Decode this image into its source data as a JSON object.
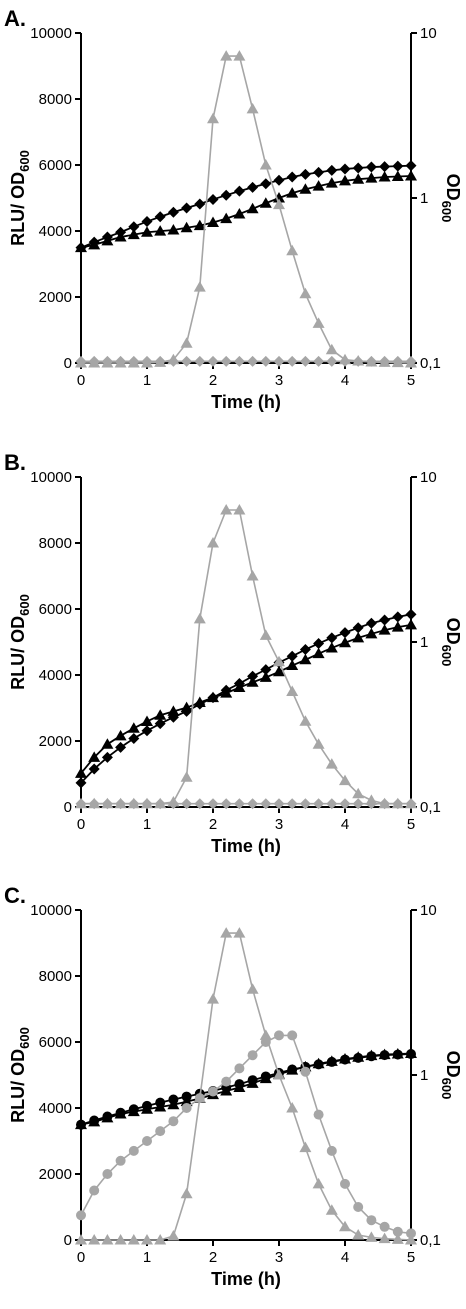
{
  "colors": {
    "black": "#000000",
    "gray": "#a6a6a6"
  },
  "axes": {
    "x_label": "Time (h)",
    "y_left_label": "RLU/ OD",
    "y_left_sub": "600",
    "y_right_label": "OD",
    "y_right_sub": "600",
    "x_ticks": [
      "0",
      "1",
      "2",
      "3",
      "4",
      "5"
    ],
    "y_left_ticks": [
      "0",
      "2000",
      "4000",
      "6000",
      "8000",
      "10000"
    ],
    "y_right_ticks": [
      "0,1",
      "1",
      "10"
    ]
  },
  "chart_data": [
    {
      "panel": "A.",
      "type": "line",
      "xlim": [
        0,
        5
      ],
      "ylim_left": [
        0,
        10000
      ],
      "ylim_right": [
        0.1,
        10
      ],
      "right_scale": "log",
      "series": [
        {
          "axis": "right",
          "marker": "diamond",
          "color": "black",
          "x": [
            0,
            0.2,
            0.4,
            0.6,
            0.8,
            1,
            1.2,
            1.4,
            1.6,
            1.8,
            2,
            2.2,
            2.4,
            2.6,
            2.8,
            3,
            3.2,
            3.4,
            3.6,
            3.8,
            4,
            4.2,
            4.4,
            4.6,
            4.8,
            5
          ],
          "y": [
            0.5,
            0.54,
            0.58,
            0.62,
            0.67,
            0.72,
            0.77,
            0.82,
            0.87,
            0.92,
            0.98,
            1.04,
            1.1,
            1.16,
            1.22,
            1.28,
            1.34,
            1.39,
            1.43,
            1.47,
            1.5,
            1.52,
            1.54,
            1.55,
            1.56,
            1.57
          ]
        },
        {
          "axis": "right",
          "marker": "triangle",
          "color": "black",
          "x": [
            0,
            0.2,
            0.4,
            0.6,
            0.8,
            1,
            1.2,
            1.4,
            1.6,
            1.8,
            2,
            2.2,
            2.4,
            2.6,
            2.8,
            3,
            3.2,
            3.4,
            3.6,
            3.8,
            4,
            4.2,
            4.4,
            4.6,
            4.8,
            5
          ],
          "y": [
            0.5,
            0.52,
            0.55,
            0.58,
            0.6,
            0.62,
            0.63,
            0.64,
            0.66,
            0.68,
            0.71,
            0.75,
            0.8,
            0.86,
            0.93,
            1,
            1.07,
            1.13,
            1.18,
            1.23,
            1.27,
            1.3,
            1.32,
            1.34,
            1.35,
            1.36
          ]
        },
        {
          "axis": "left",
          "marker": "triangle",
          "color": "gray",
          "x": [
            0,
            0.2,
            0.4,
            0.6,
            0.8,
            1,
            1.2,
            1.4,
            1.6,
            1.8,
            2,
            2.2,
            2.4,
            2.6,
            2.8,
            3,
            3.2,
            3.4,
            3.6,
            3.8,
            4,
            4.2,
            4.4,
            4.6,
            4.8,
            5
          ],
          "y": [
            0,
            0,
            0,
            0,
            0,
            0,
            20,
            100,
            600,
            2300,
            7400,
            9300,
            9300,
            7700,
            6000,
            4800,
            3400,
            2100,
            1200,
            400,
            100,
            60,
            30,
            20,
            10,
            0
          ]
        },
        {
          "axis": "left",
          "marker": "diamond",
          "color": "gray",
          "x": [
            0,
            0.2,
            0.4,
            0.6,
            0.8,
            1,
            1.2,
            1.4,
            1.6,
            1.8,
            2,
            2.2,
            2.4,
            2.6,
            2.8,
            3,
            3.2,
            3.4,
            3.6,
            3.8,
            4,
            4.2,
            4.4,
            4.6,
            4.8,
            5
          ],
          "y": [
            50,
            50,
            50,
            50,
            50,
            50,
            50,
            50,
            50,
            50,
            50,
            50,
            50,
            50,
            50,
            50,
            50,
            50,
            50,
            50,
            50,
            50,
            50,
            50,
            50,
            50
          ]
        }
      ]
    },
    {
      "panel": "B.",
      "type": "line",
      "xlim": [
        0,
        5
      ],
      "ylim_left": [
        0,
        10000
      ],
      "ylim_right": [
        0.1,
        10
      ],
      "right_scale": "log",
      "series": [
        {
          "axis": "right",
          "marker": "diamond",
          "color": "black",
          "x": [
            0,
            0.2,
            0.4,
            0.6,
            0.8,
            1,
            1.2,
            1.4,
            1.6,
            1.8,
            2,
            2.2,
            2.4,
            2.6,
            2.8,
            3,
            3.2,
            3.4,
            3.6,
            3.8,
            4,
            4.2,
            4.4,
            4.6,
            4.8,
            5
          ],
          "y": [
            0.14,
            0.17,
            0.2,
            0.23,
            0.26,
            0.29,
            0.32,
            0.35,
            0.38,
            0.42,
            0.46,
            0.51,
            0.56,
            0.62,
            0.68,
            0.75,
            0.82,
            0.9,
            0.98,
            1.06,
            1.14,
            1.22,
            1.3,
            1.36,
            1.42,
            1.47
          ]
        },
        {
          "axis": "right",
          "marker": "triangle",
          "color": "black",
          "x": [
            0,
            0.2,
            0.4,
            0.6,
            0.8,
            1,
            1.2,
            1.4,
            1.6,
            1.8,
            2,
            2.2,
            2.4,
            2.6,
            2.8,
            3,
            3.2,
            3.4,
            3.6,
            3.8,
            4,
            4.2,
            4.4,
            4.6,
            4.8,
            5
          ],
          "y": [
            0.16,
            0.2,
            0.24,
            0.27,
            0.3,
            0.33,
            0.36,
            0.38,
            0.4,
            0.43,
            0.46,
            0.49,
            0.53,
            0.57,
            0.61,
            0.66,
            0.72,
            0.78,
            0.85,
            0.92,
            0.99,
            1.06,
            1.12,
            1.18,
            1.23,
            1.27
          ]
        },
        {
          "axis": "left",
          "marker": "triangle",
          "color": "gray",
          "x": [
            0,
            0.2,
            0.4,
            0.6,
            0.8,
            1,
            1.2,
            1.4,
            1.6,
            1.8,
            2,
            2.2,
            2.4,
            2.6,
            2.8,
            3,
            3.2,
            3.4,
            3.6,
            3.8,
            4,
            4.2,
            4.4,
            4.6,
            4.8,
            5
          ],
          "y": [
            100,
            100,
            100,
            100,
            100,
            100,
            100,
            150,
            900,
            5700,
            8000,
            9000,
            9000,
            7000,
            5200,
            4400,
            3500,
            2600,
            1900,
            1300,
            800,
            400,
            200,
            100,
            100,
            100
          ]
        },
        {
          "axis": "left",
          "marker": "diamond",
          "color": "gray",
          "x": [
            0,
            0.2,
            0.4,
            0.6,
            0.8,
            1,
            1.2,
            1.4,
            1.6,
            1.8,
            2,
            2.2,
            2.4,
            2.6,
            2.8,
            3,
            3.2,
            3.4,
            3.6,
            3.8,
            4,
            4.2,
            4.4,
            4.6,
            4.8,
            5
          ],
          "y": [
            100,
            100,
            100,
            100,
            100,
            100,
            100,
            100,
            100,
            100,
            100,
            100,
            100,
            100,
            100,
            100,
            100,
            100,
            100,
            100,
            100,
            100,
            100,
            100,
            100,
            100
          ]
        }
      ]
    },
    {
      "panel": "C.",
      "type": "line",
      "xlim": [
        0,
        5
      ],
      "ylim_left": [
        0,
        10000
      ],
      "ylim_right": [
        0.1,
        10
      ],
      "right_scale": "log",
      "series": [
        {
          "axis": "right",
          "marker": "circle",
          "color": "black",
          "x": [
            0,
            0.2,
            0.4,
            0.6,
            0.8,
            1,
            1.2,
            1.4,
            1.6,
            1.8,
            2,
            2.2,
            2.4,
            2.6,
            2.8,
            3,
            3.2,
            3.4,
            3.6,
            3.8,
            4,
            4.2,
            4.4,
            4.6,
            4.8,
            5
          ],
          "y": [
            0.5,
            0.53,
            0.56,
            0.59,
            0.62,
            0.65,
            0.68,
            0.71,
            0.74,
            0.77,
            0.8,
            0.84,
            0.88,
            0.93,
            0.98,
            1.03,
            1.08,
            1.12,
            1.16,
            1.2,
            1.24,
            1.27,
            1.3,
            1.32,
            1.33,
            1.34
          ]
        },
        {
          "axis": "right",
          "marker": "triangle",
          "color": "black",
          "x": [
            0,
            0.2,
            0.4,
            0.6,
            0.8,
            1,
            1.2,
            1.4,
            1.6,
            1.8,
            2,
            2.2,
            2.4,
            2.6,
            2.8,
            3,
            3.2,
            3.4,
            3.6,
            3.8,
            4,
            4.2,
            4.4,
            4.6,
            4.8,
            5
          ],
          "y": [
            0.5,
            0.52,
            0.55,
            0.58,
            0.6,
            0.62,
            0.64,
            0.66,
            0.69,
            0.72,
            0.76,
            0.8,
            0.84,
            0.89,
            0.95,
            1.01,
            1.07,
            1.12,
            1.17,
            1.21,
            1.25,
            1.28,
            1.31,
            1.33,
            1.34,
            1.35
          ]
        },
        {
          "axis": "left",
          "marker": "triangle",
          "color": "gray",
          "x": [
            0,
            0.2,
            0.4,
            0.6,
            0.8,
            1,
            1.2,
            1.4,
            1.6,
            1.8,
            2,
            2.2,
            2.4,
            2.6,
            2.8,
            3,
            3.2,
            3.4,
            3.6,
            3.8,
            4,
            4.2,
            4.4,
            4.6,
            4.8,
            5
          ],
          "y": [
            0,
            0,
            0,
            0,
            0,
            0,
            0,
            120,
            1400,
            4300,
            7300,
            9300,
            9300,
            7600,
            6200,
            5000,
            4000,
            2800,
            1700,
            900,
            400,
            150,
            80,
            40,
            20,
            0
          ]
        },
        {
          "axis": "left",
          "marker": "circle",
          "color": "gray",
          "x": [
            0,
            0.2,
            0.4,
            0.6,
            0.8,
            1,
            1.2,
            1.4,
            1.6,
            1.8,
            2,
            2.2,
            2.4,
            2.6,
            2.8,
            3,
            3.2,
            3.4,
            3.6,
            3.8,
            4,
            4.2,
            4.4,
            4.6,
            4.8,
            5
          ],
          "y": [
            750,
            1500,
            2000,
            2400,
            2700,
            3000,
            3300,
            3600,
            4000,
            4300,
            4500,
            4800,
            5200,
            5600,
            6000,
            6200,
            6200,
            5100,
            3800,
            2700,
            1700,
            1000,
            600,
            400,
            250,
            200
          ]
        }
      ]
    }
  ]
}
